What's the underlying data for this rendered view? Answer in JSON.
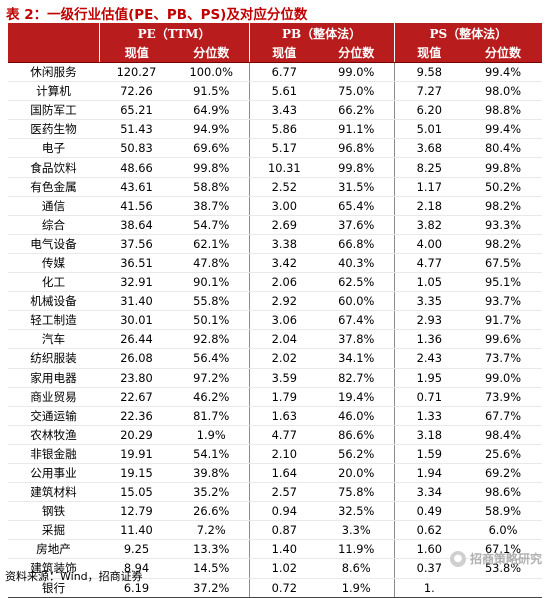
{
  "title": "表 2：一级行业估值(PE、PB、PS)及对应分位数",
  "header": {
    "group_pe": "PE（TTM）",
    "group_pb": "PB（整体法）",
    "group_ps": "PS（整体法）",
    "col_value": "现值",
    "col_pct": "分位数"
  },
  "rows": [
    {
      "name": "休闲服务",
      "pe": "120.27",
      "pe_pct": "100.0%",
      "pb": "6.77",
      "pb_pct": "99.0%",
      "ps": "9.58",
      "ps_pct": "99.4%"
    },
    {
      "name": "计算机",
      "pe": "72.26",
      "pe_pct": "91.5%",
      "pb": "5.61",
      "pb_pct": "75.0%",
      "ps": "7.27",
      "ps_pct": "98.0%"
    },
    {
      "name": "国防军工",
      "pe": "65.21",
      "pe_pct": "64.9%",
      "pb": "3.43",
      "pb_pct": "66.2%",
      "ps": "6.20",
      "ps_pct": "98.8%"
    },
    {
      "name": "医药生物",
      "pe": "51.43",
      "pe_pct": "94.9%",
      "pb": "5.86",
      "pb_pct": "91.1%",
      "ps": "5.01",
      "ps_pct": "99.4%"
    },
    {
      "name": "电子",
      "pe": "50.83",
      "pe_pct": "69.6%",
      "pb": "5.17",
      "pb_pct": "96.8%",
      "ps": "3.68",
      "ps_pct": "80.4%"
    },
    {
      "name": "食品饮料",
      "pe": "48.66",
      "pe_pct": "99.8%",
      "pb": "10.31",
      "pb_pct": "99.8%",
      "ps": "8.25",
      "ps_pct": "99.8%"
    },
    {
      "name": "有色金属",
      "pe": "43.61",
      "pe_pct": "58.8%",
      "pb": "2.52",
      "pb_pct": "31.5%",
      "ps": "1.17",
      "ps_pct": "50.2%"
    },
    {
      "name": "通信",
      "pe": "41.56",
      "pe_pct": "38.7%",
      "pb": "3.00",
      "pb_pct": "65.4%",
      "ps": "2.18",
      "ps_pct": "98.2%"
    },
    {
      "name": "综合",
      "pe": "38.64",
      "pe_pct": "54.7%",
      "pb": "2.69",
      "pb_pct": "37.6%",
      "ps": "3.82",
      "ps_pct": "93.3%"
    },
    {
      "name": "电气设备",
      "pe": "37.56",
      "pe_pct": "62.1%",
      "pb": "3.38",
      "pb_pct": "66.8%",
      "ps": "4.00",
      "ps_pct": "98.2%"
    },
    {
      "name": "传媒",
      "pe": "36.51",
      "pe_pct": "47.8%",
      "pb": "3.42",
      "pb_pct": "40.3%",
      "ps": "4.77",
      "ps_pct": "67.5%"
    },
    {
      "name": "化工",
      "pe": "32.91",
      "pe_pct": "90.1%",
      "pb": "2.06",
      "pb_pct": "62.5%",
      "ps": "1.05",
      "ps_pct": "95.1%"
    },
    {
      "name": "机械设备",
      "pe": "31.40",
      "pe_pct": "55.8%",
      "pb": "2.92",
      "pb_pct": "60.0%",
      "ps": "3.35",
      "ps_pct": "93.7%"
    },
    {
      "name": "轻工制造",
      "pe": "30.01",
      "pe_pct": "50.1%",
      "pb": "3.06",
      "pb_pct": "67.4%",
      "ps": "2.93",
      "ps_pct": "91.7%"
    },
    {
      "name": "汽车",
      "pe": "26.44",
      "pe_pct": "92.8%",
      "pb": "2.04",
      "pb_pct": "37.8%",
      "ps": "1.36",
      "ps_pct": "99.6%"
    },
    {
      "name": "纺织服装",
      "pe": "26.08",
      "pe_pct": "56.4%",
      "pb": "2.02",
      "pb_pct": "34.1%",
      "ps": "2.43",
      "ps_pct": "73.7%"
    },
    {
      "name": "家用电器",
      "pe": "23.80",
      "pe_pct": "97.2%",
      "pb": "3.59",
      "pb_pct": "82.7%",
      "ps": "1.95",
      "ps_pct": "99.0%"
    },
    {
      "name": "商业贸易",
      "pe": "22.67",
      "pe_pct": "46.2%",
      "pb": "1.79",
      "pb_pct": "19.4%",
      "ps": "0.71",
      "ps_pct": "73.9%"
    },
    {
      "name": "交通运输",
      "pe": "22.36",
      "pe_pct": "81.7%",
      "pb": "1.63",
      "pb_pct": "46.0%",
      "ps": "1.33",
      "ps_pct": "67.7%"
    },
    {
      "name": "农林牧渔",
      "pe": "20.29",
      "pe_pct": "1.9%",
      "pb": "4.77",
      "pb_pct": "86.6%",
      "ps": "3.18",
      "ps_pct": "98.4%"
    },
    {
      "name": "非银金融",
      "pe": "19.91",
      "pe_pct": "54.1%",
      "pb": "2.10",
      "pb_pct": "56.2%",
      "ps": "1.59",
      "ps_pct": "25.6%"
    },
    {
      "name": "公用事业",
      "pe": "19.15",
      "pe_pct": "39.8%",
      "pb": "1.64",
      "pb_pct": "20.0%",
      "ps": "1.94",
      "ps_pct": "69.2%"
    },
    {
      "name": "建筑材料",
      "pe": "15.05",
      "pe_pct": "35.2%",
      "pb": "2.57",
      "pb_pct": "75.8%",
      "ps": "3.34",
      "ps_pct": "98.6%"
    },
    {
      "name": "钢铁",
      "pe": "12.79",
      "pe_pct": "26.6%",
      "pb": "0.94",
      "pb_pct": "32.5%",
      "ps": "0.49",
      "ps_pct": "58.9%"
    },
    {
      "name": "采掘",
      "pe": "11.40",
      "pe_pct": "7.2%",
      "pb": "0.87",
      "pb_pct": "3.3%",
      "ps": "0.62",
      "ps_pct": "6.0%"
    },
    {
      "name": "房地产",
      "pe": "9.25",
      "pe_pct": "13.3%",
      "pb": "1.40",
      "pb_pct": "11.9%",
      "ps": "1.60",
      "ps_pct": "67.1%"
    },
    {
      "name": "建筑装饰",
      "pe": "8.94",
      "pe_pct": "14.5%",
      "pb": "1.02",
      "pb_pct": "8.6%",
      "ps": "0.37",
      "ps_pct": "53.8%"
    },
    {
      "name": "银行",
      "pe": "6.19",
      "pe_pct": "37.2%",
      "pb": "0.72",
      "pb_pct": "1.9%",
      "ps": "1.",
      "ps_pct": ""
    }
  ],
  "source": "资料来源：Wind，招商证券",
  "watermark": "招商策略研究"
}
